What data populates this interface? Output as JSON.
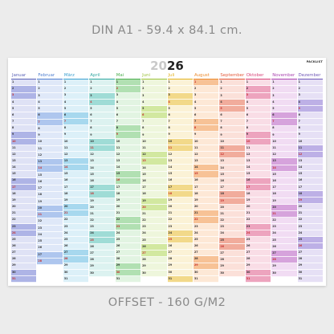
{
  "caption_top": "DIN A1 - 59.4 x 84.1 cm.",
  "caption_bottom": "OFFSET - 160 G/M2",
  "poster": {
    "year_prefix": "20",
    "year_suffix": "26",
    "brand": "PACKLIST",
    "months": [
      {
        "name": "Januar",
        "days": 31,
        "start_weekday": 4,
        "color": "#5b63b7",
        "light": "#dfe2f5",
        "strong": "#aeb4e6"
      },
      {
        "name": "Februar",
        "days": 28,
        "start_weekday": 0,
        "color": "#4f7fd0",
        "light": "#dfe8f8",
        "strong": "#aec6ee"
      },
      {
        "name": "März",
        "days": 31,
        "start_weekday": 0,
        "color": "#3a9fd0",
        "light": "#dcf0f8",
        "strong": "#a7d8ee"
      },
      {
        "name": "April",
        "days": 30,
        "start_weekday": 3,
        "color": "#2ea6a0",
        "light": "#dcf2f0",
        "strong": "#9fdcd6"
      },
      {
        "name": "Mai",
        "days": 31,
        "start_weekday": 5,
        "color": "#4caf50",
        "light": "#e2f4e2",
        "strong": "#b1e0b2"
      },
      {
        "name": "Juni",
        "days": 30,
        "start_weekday": 1,
        "color": "#9cc23a",
        "light": "#eef6dc",
        "strong": "#d2e8a0"
      },
      {
        "name": "Juli",
        "days": 31,
        "start_weekday": 3,
        "color": "#e3b21e",
        "light": "#fbf2d6",
        "strong": "#f2d98a"
      },
      {
        "name": "August",
        "days": 31,
        "start_weekday": 6,
        "color": "#ec8a2c",
        "light": "#fde8d6",
        "strong": "#f7c296"
      },
      {
        "name": "September",
        "days": 30,
        "start_weekday": 2,
        "color": "#e45a3a",
        "light": "#fbe0d9",
        "strong": "#f1ac9c"
      },
      {
        "name": "Oktober",
        "days": 31,
        "start_weekday": 4,
        "color": "#d8457a",
        "light": "#f9dde6",
        "strong": "#eda4be"
      },
      {
        "name": "November",
        "days": 30,
        "start_weekday": 0,
        "color": "#a944b0",
        "light": "#f1dcf3",
        "strong": "#d6a3dc"
      },
      {
        "name": "Dezember",
        "days": 31,
        "start_weekday": 2,
        "color": "#7058b8",
        "light": "#e6e0f5",
        "strong": "#bdb0e6"
      }
    ]
  }
}
